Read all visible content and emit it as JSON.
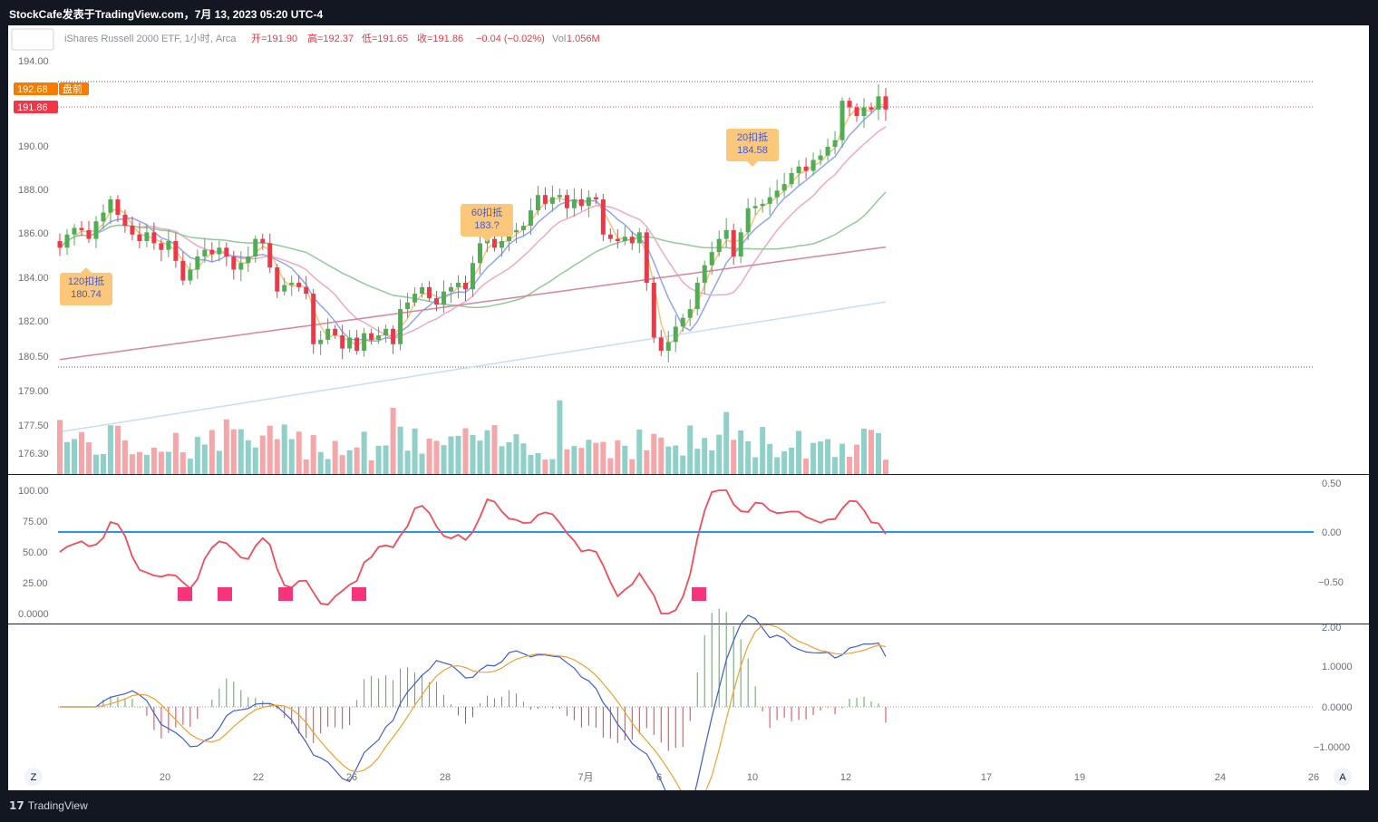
{
  "header": {
    "title": "StockCafe发表于TradingView.com，7月 13, 2023 05:20 UTC-4"
  },
  "legend": {
    "symbol": "iShares Russell 2000 ETF, 1小时, Arca",
    "open": "开=191.90",
    "high": "高=192.37",
    "low": "低=191.65",
    "close": "收=191.86",
    "change": "−0.04 (−0.02%)",
    "vol_label": "Vol",
    "vol_value": "1.056M"
  },
  "price_badges": {
    "premarket_price": "192.68",
    "premarket_label": "盘前",
    "last_price": "191.86"
  },
  "price_axis": [
    "194.00",
    "190.00",
    "188.00",
    "186.00",
    "184.00",
    "182.00",
    "180.50",
    "179.00",
    "177.50",
    "176.30"
  ],
  "osc_axis_left": [
    "100.00",
    "75.00",
    "50.00",
    "25.00",
    "0.0000"
  ],
  "osc_axis_right": [
    "0.50",
    "0.00",
    "−0.50"
  ],
  "macd_axis": [
    "2.00",
    "1.0000",
    "0.0000",
    "−1.0000"
  ],
  "time_axis": [
    "20",
    "22",
    "26",
    "28",
    "7月",
    "6",
    "10",
    "12",
    "17",
    "19",
    "24",
    "26"
  ],
  "callouts": [
    {
      "title": "120扣抵",
      "value": "180.74"
    },
    {
      "title": "60扣抵",
      "value": "183.?"
    },
    {
      "title": "20扣抵",
      "value": "184.58"
    }
  ],
  "buttons": {
    "zoom_left": "Z",
    "auto_right": "A"
  },
  "footer": {
    "brand": "TradingView"
  },
  "colors": {
    "up": "#4caf50",
    "down": "#f23645",
    "vol_up": "#8fd0c9",
    "vol_down": "#f5a6a8",
    "ma5": "#f3c47a",
    "ma10": "#8fa6f0",
    "ma20": "#f2a7c6",
    "ma60": "#92c99a",
    "ma120": "#d9839e",
    "ma250": "#c7def5",
    "osc_line": "#f24c5a",
    "osc_line2": "#7b68ee",
    "zero_line": "#2196f3",
    "macd": "#3f5bd9",
    "signal": "#f0a030"
  },
  "chart_data": {
    "type": "candlestick",
    "description_series": "ohlc_hourly",
    "closes": [
      185.6,
      186.2,
      186.5,
      186.4,
      186.0,
      186.8,
      187.2,
      187.8,
      187.1,
      186.6,
      186.2,
      185.9,
      186.3,
      185.8,
      185.5,
      185.9,
      185.0,
      184.1,
      184.6,
      185.2,
      185.5,
      185.3,
      185.6,
      185.2,
      184.6,
      184.9,
      185.2,
      186.0,
      185.8,
      184.7,
      183.6,
      183.9,
      184.0,
      183.8,
      183.5,
      181.2,
      181.4,
      181.9,
      181.6,
      181.0,
      181.5,
      180.9,
      181.7,
      181.4,
      181.6,
      181.9,
      181.2,
      182.8,
      183.1,
      183.5,
      183.8,
      183.3,
      183.0,
      183.6,
      183.8,
      184.0,
      183.7,
      184.9,
      185.8,
      186.0,
      185.6,
      185.9,
      186.3,
      186.4,
      186.6,
      187.3,
      188.0,
      187.6,
      187.9,
      188.0,
      187.4,
      187.8,
      187.5,
      187.9,
      187.8,
      186.2,
      186.0,
      185.9,
      186.1,
      185.8,
      186.3,
      184.0,
      181.5,
      180.9,
      181.3,
      182.0,
      182.4,
      182.8,
      184.0,
      184.8,
      185.4,
      186.0,
      186.4,
      185.2,
      186.3,
      187.4,
      187.5,
      187.6,
      187.9,
      188.2,
      188.5,
      189.0,
      189.3,
      189.1,
      189.6,
      189.8,
      190.2,
      190.5,
      192.3,
      192.0,
      191.6,
      192.0,
      191.9,
      192.5,
      191.9
    ]
  }
}
